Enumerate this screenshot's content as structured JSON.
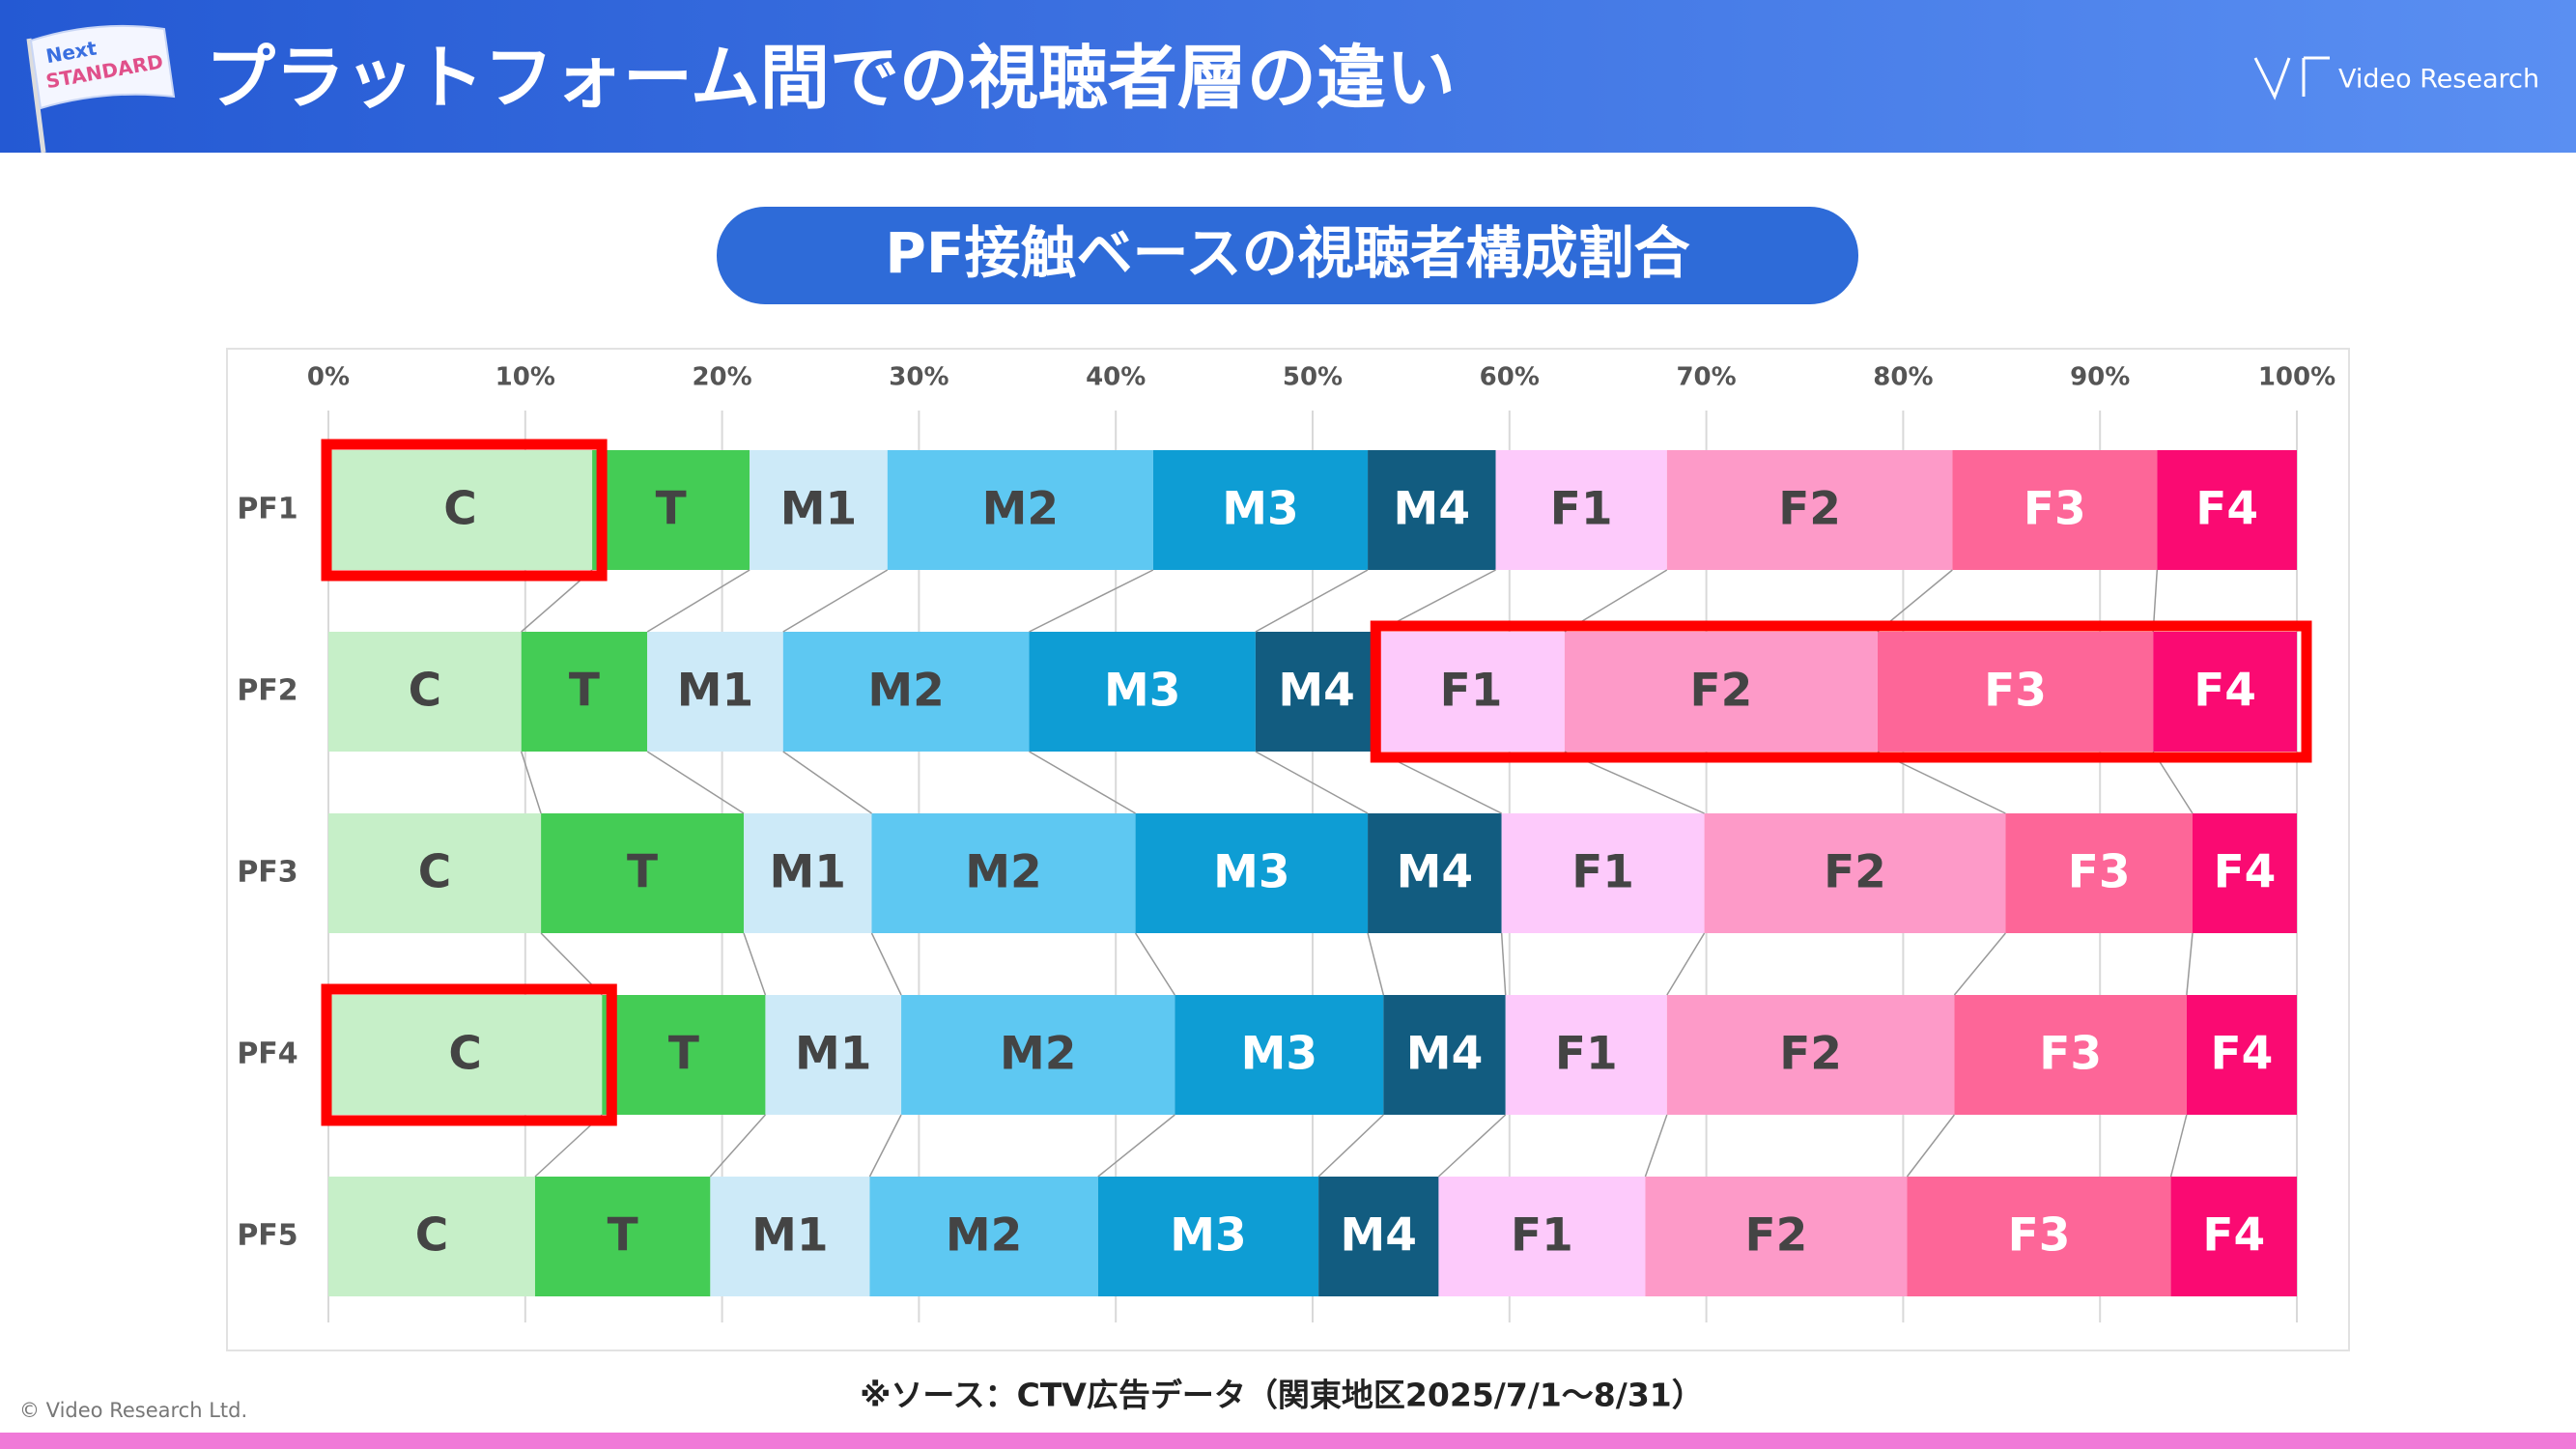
{
  "header": {
    "title": "プラットフォーム間での視聴者層の違い",
    "logo": "Video Research",
    "flag": [
      "Next",
      "STANDARD"
    ]
  },
  "footer": {
    "copyright": "© Video Research Ltd."
  },
  "chart_data": {
    "type": "stacked-bar-horizontal",
    "title": "PF接触ベースの視聴者構成割合",
    "note": "※ソース：CTV広告データ（関東地区2025/7/1～8/31）",
    "categories": [
      "PF1",
      "PF2",
      "PF3",
      "PF4",
      "PF5"
    ],
    "series": [
      {
        "name": "C",
        "color": "#c6efc8",
        "label_color": "#444444",
        "values": [
          13.4,
          9.8,
          10.8,
          13.9,
          10.5
        ]
      },
      {
        "name": "T",
        "color": "#44cc55",
        "label_color": "#444444",
        "values": [
          8.0,
          6.4,
          10.3,
          8.3,
          8.9
        ]
      },
      {
        "name": "M1",
        "color": "#cdeaf8",
        "label_color": "#444444",
        "values": [
          7.0,
          6.9,
          6.5,
          6.9,
          8.1
        ]
      },
      {
        "name": "M2",
        "color": "#5ec8f2",
        "label_color": "#444444",
        "values": [
          13.5,
          12.5,
          13.4,
          13.9,
          11.6
        ]
      },
      {
        "name": "M3",
        "color": "#0e9dd4",
        "label_color": "#ffffff",
        "values": [
          10.9,
          11.5,
          11.8,
          10.6,
          11.2
        ]
      },
      {
        "name": "M4",
        "color": "#125c80",
        "label_color": "#ffffff",
        "values": [
          6.5,
          6.2,
          6.8,
          6.2,
          6.1
        ]
      },
      {
        "name": "F1",
        "color": "#fdcafb",
        "label_color": "#444444",
        "values": [
          8.7,
          9.5,
          10.3,
          8.2,
          10.5
        ]
      },
      {
        "name": "F2",
        "color": "#fd9ac8",
        "label_color": "#444444",
        "values": [
          14.5,
          15.9,
          15.3,
          14.6,
          13.3
        ]
      },
      {
        "name": "F3",
        "color": "#fd6698",
        "label_color": "#ffffff",
        "values": [
          10.4,
          14.0,
          9.5,
          11.8,
          13.4
        ]
      },
      {
        "name": "F4",
        "color": "#fa0a72",
        "label_color": "#ffffff",
        "values": [
          7.1,
          7.3,
          5.3,
          5.6,
          6.4
        ]
      }
    ],
    "xlim": [
      0,
      100
    ],
    "xticks": [
      {
        "value": 0,
        "label": "0%"
      },
      {
        "value": 10,
        "label": "10%"
      },
      {
        "value": 20,
        "label": "20%"
      },
      {
        "value": 30,
        "label": "30%"
      },
      {
        "value": 40,
        "label": "40%"
      },
      {
        "value": 50,
        "label": "50%"
      },
      {
        "value": 60,
        "label": "60%"
      },
      {
        "value": 70,
        "label": "70%"
      },
      {
        "value": 80,
        "label": "80%"
      },
      {
        "value": 90,
        "label": "90%"
      },
      {
        "value": 100,
        "label": "100%"
      }
    ],
    "grid": true
  }
}
